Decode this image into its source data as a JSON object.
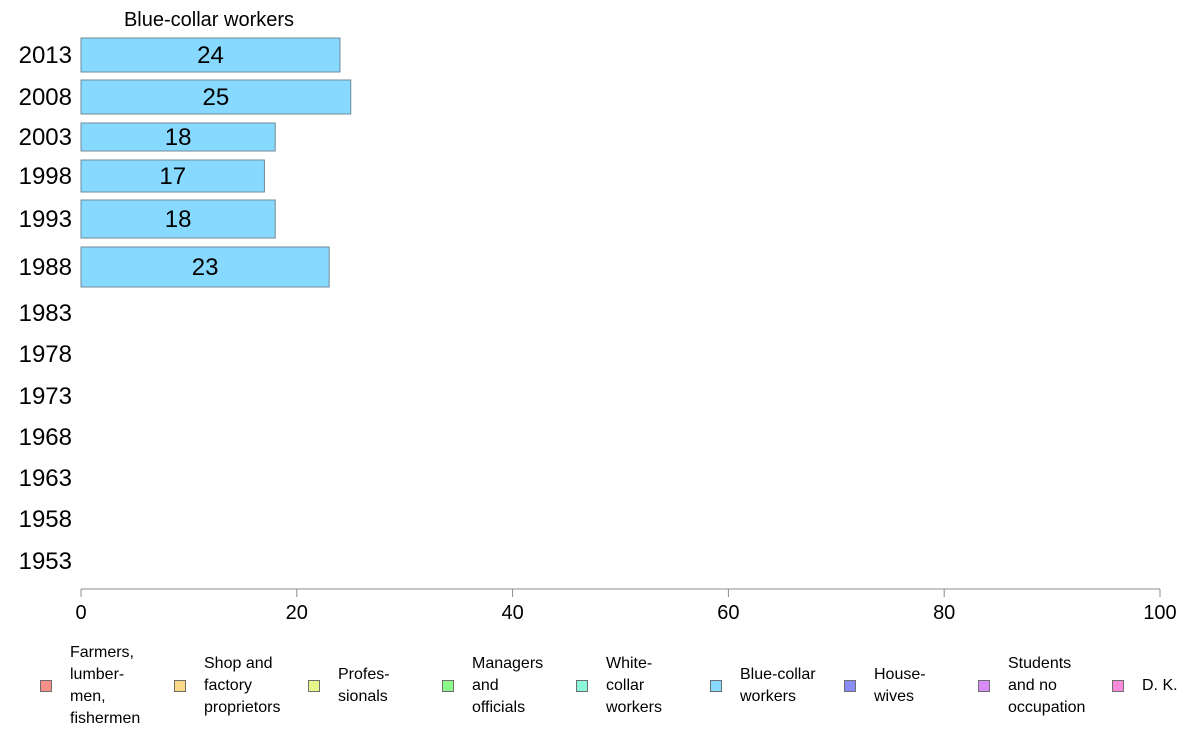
{
  "chart_data": {
    "type": "bar",
    "orientation": "horizontal",
    "title": "Blue-collar workers",
    "categories": [
      "2013",
      "2008",
      "2003",
      "1998",
      "1993",
      "1988",
      "1983",
      "1978",
      "1973",
      "1968",
      "1963",
      "1958",
      "1953"
    ],
    "series": [
      {
        "name": "Blue-collar workers",
        "color": "#87d9ff",
        "values": [
          24,
          25,
          18,
          17,
          18,
          23,
          null,
          null,
          null,
          null,
          null,
          null,
          null
        ]
      }
    ],
    "xlim": [
      0,
      100
    ],
    "xticks": [
      "0",
      "20",
      "40",
      "60",
      "80",
      "100"
    ],
    "grid": false,
    "legend_position": "bottom"
  },
  "legend": [
    {
      "label": "Farmers,\nlumber-\nmen,\nfishermen",
      "color": "#f88f8a"
    },
    {
      "label": "Shop and\nfactory\nproprietors",
      "color": "#fbd789"
    },
    {
      "label": "Profes-\nsionals",
      "color": "#e5f98b"
    },
    {
      "label": "Managers\nand\nofficials",
      "color": "#8cf98b"
    },
    {
      "label": "White-\ncollar\nworkers",
      "color": "#89f9d9"
    },
    {
      "label": "Blue-collar\nworkers",
      "color": "#87d9ff"
    },
    {
      "label": "House-\nwives",
      "color": "#8b8cf9"
    },
    {
      "label": "Students\nand no\noccupation",
      "color": "#d98bf9"
    },
    {
      "label": "D. K.",
      "color": "#f98bd9"
    }
  ]
}
